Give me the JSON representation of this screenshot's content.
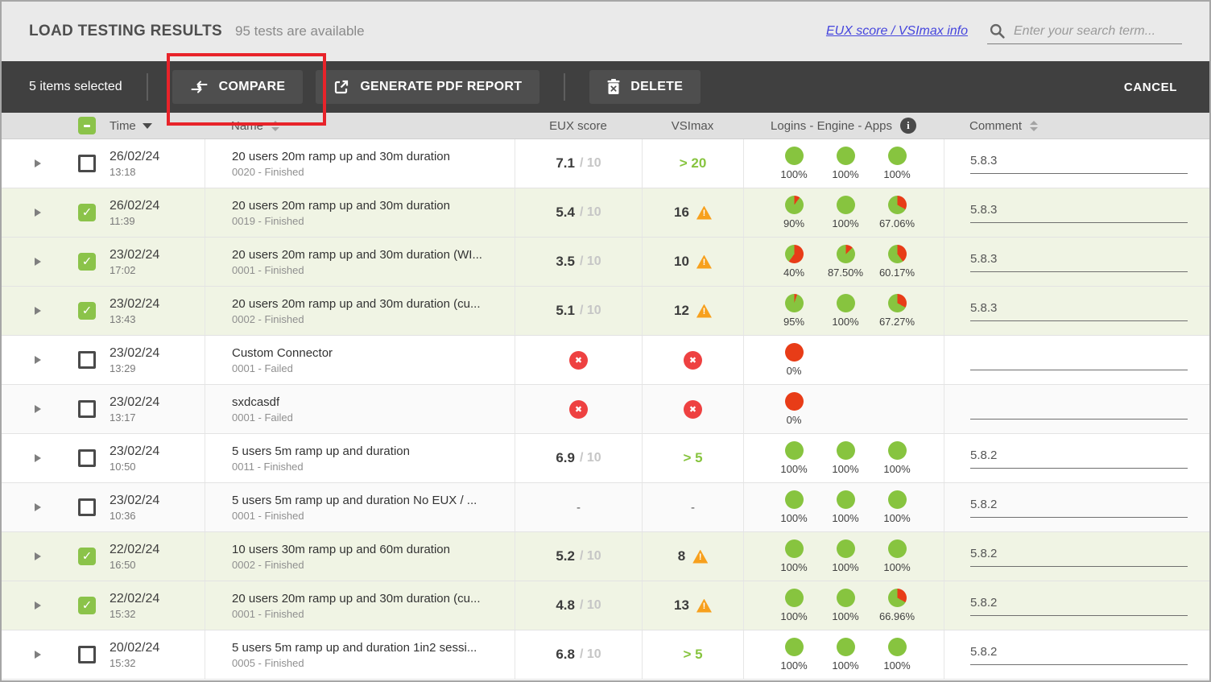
{
  "header": {
    "title": "LOAD TESTING RESULTS",
    "subtitle": "95 tests are available",
    "info_link": "EUX score / VSImax info",
    "search_placeholder": "Enter your search term..."
  },
  "toolbar": {
    "selection_text": "5 items selected",
    "compare_label": "COMPARE",
    "generate_pdf_label": "GENERATE PDF REPORT",
    "delete_label": "DELETE",
    "cancel_label": "CANCEL"
  },
  "table": {
    "columns": {
      "time": "Time",
      "name": "Name",
      "eux": "EUX score",
      "vsimax": "VSImax",
      "logins": "Logins - Engine - Apps",
      "comment": "Comment"
    },
    "rows": [
      {
        "checked": false,
        "date": "26/02/24",
        "time": "13:18",
        "name": "20 users 20m ramp up and 30m duration",
        "status": "0020 - Finished",
        "eux": {
          "type": "score",
          "value": "7.1",
          "denom": "/ 10"
        },
        "vsimax": {
          "type": "good",
          "value": "> 20"
        },
        "pies": [
          {
            "label": "100%",
            "green": 100
          },
          {
            "label": "100%",
            "green": 100
          },
          {
            "label": "100%",
            "green": 100
          }
        ],
        "comment": "5.8.3"
      },
      {
        "checked": true,
        "date": "26/02/24",
        "time": "11:39",
        "name": "20 users 20m ramp up and 30m duration",
        "status": "0019 - Finished",
        "eux": {
          "type": "score",
          "value": "5.4",
          "denom": "/ 10"
        },
        "vsimax": {
          "type": "warn",
          "value": "16"
        },
        "pies": [
          {
            "label": "90%",
            "green": 90
          },
          {
            "label": "100%",
            "green": 100
          },
          {
            "label": "67.06%",
            "green": 67.06
          }
        ],
        "comment": "5.8.3"
      },
      {
        "checked": true,
        "date": "23/02/24",
        "time": "17:02",
        "name": "20 users 20m ramp up and 30m duration (WI...",
        "status": "0001 - Finished",
        "eux": {
          "type": "score",
          "value": "3.5",
          "denom": "/ 10"
        },
        "vsimax": {
          "type": "warn",
          "value": "10"
        },
        "pies": [
          {
            "label": "40%",
            "green": 40
          },
          {
            "label": "87.50%",
            "green": 87.5
          },
          {
            "label": "60.17%",
            "green": 60.17
          }
        ],
        "comment": "5.8.3"
      },
      {
        "checked": true,
        "date": "23/02/24",
        "time": "13:43",
        "name": "20 users 20m ramp up and 30m duration (cu...",
        "status": "0002 - Finished",
        "eux": {
          "type": "score",
          "value": "5.1",
          "denom": "/ 10"
        },
        "vsimax": {
          "type": "warn",
          "value": "12"
        },
        "pies": [
          {
            "label": "95%",
            "green": 95
          },
          {
            "label": "100%",
            "green": 100
          },
          {
            "label": "67.27%",
            "green": 67.27
          }
        ],
        "comment": "5.8.3"
      },
      {
        "checked": false,
        "date": "23/02/24",
        "time": "13:29",
        "name": "Custom Connector",
        "status": "0001 - Failed",
        "eux": {
          "type": "failed"
        },
        "vsimax": {
          "type": "failed"
        },
        "pies": [
          {
            "label": "0%",
            "green": 0
          }
        ],
        "comment": ""
      },
      {
        "checked": false,
        "date": "23/02/24",
        "time": "13:17",
        "name": "sxdcasdf",
        "status": "0001 - Failed",
        "eux": {
          "type": "failed"
        },
        "vsimax": {
          "type": "failed"
        },
        "pies": [
          {
            "label": "0%",
            "green": 0
          }
        ],
        "comment": ""
      },
      {
        "checked": false,
        "date": "23/02/24",
        "time": "10:50",
        "name": "5 users 5m ramp up and duration",
        "status": "0011 - Finished",
        "eux": {
          "type": "score",
          "value": "6.9",
          "denom": "/ 10"
        },
        "vsimax": {
          "type": "good",
          "value": "> 5"
        },
        "pies": [
          {
            "label": "100%",
            "green": 100
          },
          {
            "label": "100%",
            "green": 100
          },
          {
            "label": "100%",
            "green": 100
          }
        ],
        "comment": "5.8.2"
      },
      {
        "checked": false,
        "date": "23/02/24",
        "time": "10:36",
        "name": "5 users 5m ramp up and duration No EUX / ...",
        "status": "0001 - Finished",
        "eux": {
          "type": "none",
          "value": "-"
        },
        "vsimax": {
          "type": "none",
          "value": "-"
        },
        "pies": [
          {
            "label": "100%",
            "green": 100
          },
          {
            "label": "100%",
            "green": 100
          },
          {
            "label": "100%",
            "green": 100
          }
        ],
        "comment": "5.8.2"
      },
      {
        "checked": true,
        "date": "22/02/24",
        "time": "16:50",
        "name": "10 users 30m ramp up and 60m duration",
        "status": "0002 - Finished",
        "eux": {
          "type": "score",
          "value": "5.2",
          "denom": "/ 10"
        },
        "vsimax": {
          "type": "warn",
          "value": "8"
        },
        "pies": [
          {
            "label": "100%",
            "green": 100
          },
          {
            "label": "100%",
            "green": 100
          },
          {
            "label": "100%",
            "green": 100
          }
        ],
        "comment": "5.8.2"
      },
      {
        "checked": true,
        "date": "22/02/24",
        "time": "15:32",
        "name": "20 users 20m ramp up and 30m duration (cu...",
        "status": "0001 - Finished",
        "eux": {
          "type": "score",
          "value": "4.8",
          "denom": "/ 10"
        },
        "vsimax": {
          "type": "warn",
          "value": "13"
        },
        "pies": [
          {
            "label": "100%",
            "green": 100
          },
          {
            "label": "100%",
            "green": 100
          },
          {
            "label": "66.96%",
            "green": 66.96
          }
        ],
        "comment": "5.8.2"
      },
      {
        "checked": false,
        "date": "20/02/24",
        "time": "15:32",
        "name": "5 users 5m ramp up and duration 1in2 sessi...",
        "status": "0005 - Finished",
        "eux": {
          "type": "score",
          "value": "6.8",
          "denom": "/ 10"
        },
        "vsimax": {
          "type": "good",
          "value": "> 5"
        },
        "pies": [
          {
            "label": "100%",
            "green": 100
          },
          {
            "label": "100%",
            "green": 100
          },
          {
            "label": "100%",
            "green": 100
          }
        ],
        "comment": "5.8.2"
      }
    ]
  },
  "colors": {
    "pie_green": "#87c43f",
    "pie_red": "#e83c17",
    "fail_red": "#ee4141",
    "warn_orange": "#f7a01d",
    "selected_row_bg": "#f0f4e4",
    "annotation_red": "#e8232a",
    "link_blue": "#4545dd",
    "toolbar_bg": "#404040"
  },
  "icons": {
    "search": "magnifier",
    "compare": "two-opposing-arrows",
    "generate_pdf": "export-square-arrow",
    "delete": "trash-with-x",
    "info": "i-in-circle",
    "warning": "orange-triangle-exclamation",
    "failed": "red-circle-x",
    "sort_desc": "filled-down-triangle",
    "sort_both": "up-down-triangles",
    "expand": "right-triangle",
    "select_all": "green-indeterminate-checkbox"
  }
}
